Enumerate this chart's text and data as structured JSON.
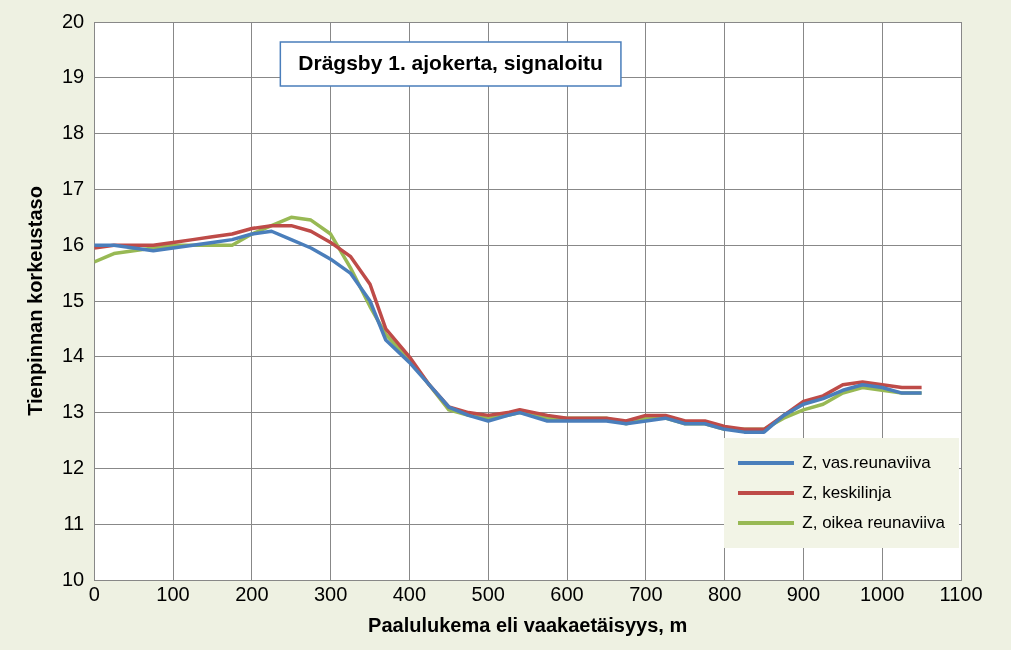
{
  "chart_data": {
    "type": "line",
    "title": "Drägsby 1. ajokerta, signaloitu",
    "xlabel": "Paalulukema eli vaakaetäisyys, m",
    "ylabel": "Tienpinnan korkeustaso",
    "x": [
      0,
      25,
      50,
      75,
      100,
      125,
      150,
      175,
      200,
      225,
      250,
      275,
      300,
      325,
      350,
      370,
      400,
      425,
      450,
      475,
      500,
      525,
      540,
      575,
      600,
      650,
      675,
      700,
      725,
      750,
      775,
      800,
      825,
      850,
      875,
      900,
      925,
      950,
      975,
      1000,
      1025,
      1050
    ],
    "series": [
      {
        "name": "Z, vas.reunaviiva",
        "color": "#4a7ebb",
        "values": [
          16.0,
          16.0,
          15.95,
          15.9,
          15.95,
          16.0,
          16.05,
          16.1,
          16.2,
          16.25,
          16.1,
          15.95,
          15.75,
          15.5,
          15.0,
          14.3,
          13.9,
          13.5,
          13.1,
          12.95,
          12.85,
          12.95,
          13.0,
          12.85,
          12.85,
          12.85,
          12.8,
          12.85,
          12.9,
          12.8,
          12.8,
          12.7,
          12.65,
          12.65,
          12.95,
          13.15,
          13.25,
          13.4,
          13.5,
          13.45,
          13.35,
          13.35
        ]
      },
      {
        "name": "Z, keskilinja",
        "color": "#be4b48",
        "values": [
          15.95,
          16.0,
          16.0,
          16.0,
          16.05,
          16.1,
          16.15,
          16.2,
          16.3,
          16.35,
          16.35,
          16.25,
          16.05,
          15.8,
          15.3,
          14.5,
          14.0,
          13.5,
          13.1,
          13.0,
          12.95,
          13.0,
          13.05,
          12.95,
          12.9,
          12.9,
          12.85,
          12.95,
          12.95,
          12.85,
          12.85,
          12.75,
          12.7,
          12.7,
          12.95,
          13.2,
          13.3,
          13.5,
          13.55,
          13.5,
          13.45,
          13.45
        ]
      },
      {
        "name": "Z, oikea reunaviiva",
        "color": "#98b954",
        "values": [
          15.7,
          15.85,
          15.9,
          15.95,
          16.0,
          16.0,
          16.0,
          16.0,
          16.2,
          16.35,
          16.5,
          16.45,
          16.2,
          15.6,
          14.9,
          14.4,
          13.95,
          13.5,
          13.05,
          12.95,
          12.9,
          12.95,
          13.0,
          12.9,
          12.9,
          12.9,
          12.8,
          12.9,
          12.9,
          12.8,
          12.8,
          12.7,
          12.7,
          12.7,
          12.9,
          13.05,
          13.15,
          13.35,
          13.45,
          13.4,
          13.35,
          13.35
        ]
      }
    ],
    "xlim": [
      0,
      1100
    ],
    "xticks": [
      0,
      100,
      200,
      300,
      400,
      500,
      600,
      700,
      800,
      900,
      1000,
      1100
    ],
    "ylim": [
      10,
      20
    ],
    "yticks": [
      10,
      11,
      12,
      13,
      14,
      15,
      16,
      17,
      18,
      19,
      20
    ],
    "grid": true,
    "legend": "bottom right",
    "marker": "none",
    "line_style": "solid"
  }
}
